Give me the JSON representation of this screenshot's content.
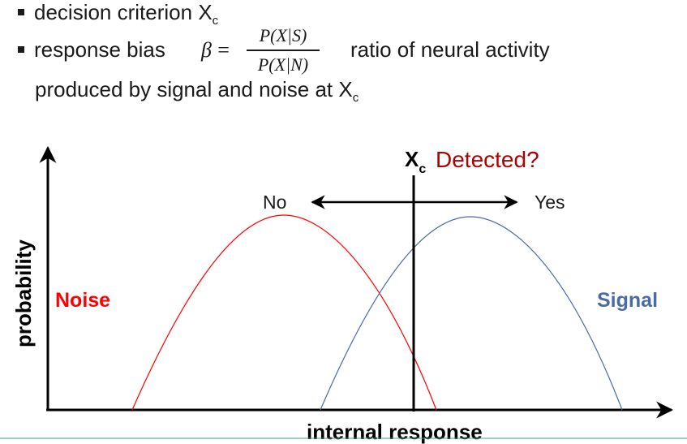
{
  "bullets": {
    "criterion_text": "decision criterion X",
    "criterion_sub": "c",
    "bias_label": "response bias",
    "beta_symbol": "β",
    "equals": "=",
    "numerator": "P(X|S)",
    "denominator": "P(X|N)",
    "ratio_text": "ratio of neural activity",
    "produced_text": "produced by signal and noise at X",
    "produced_sub": "c"
  },
  "diagram": {
    "y_axis_label": "probability",
    "x_axis_label": "internal response",
    "criterion_label": "X",
    "criterion_sub": "c",
    "question": "Detected?",
    "left_choice": "No",
    "right_choice": "Yes",
    "noise_label": "Noise",
    "signal_label": "Signal"
  },
  "colors": {
    "noise": "#ff0000",
    "signal": "#4a6ba8",
    "question": "#b00000",
    "axis": "#000000",
    "rule": "#3aa58a"
  }
}
